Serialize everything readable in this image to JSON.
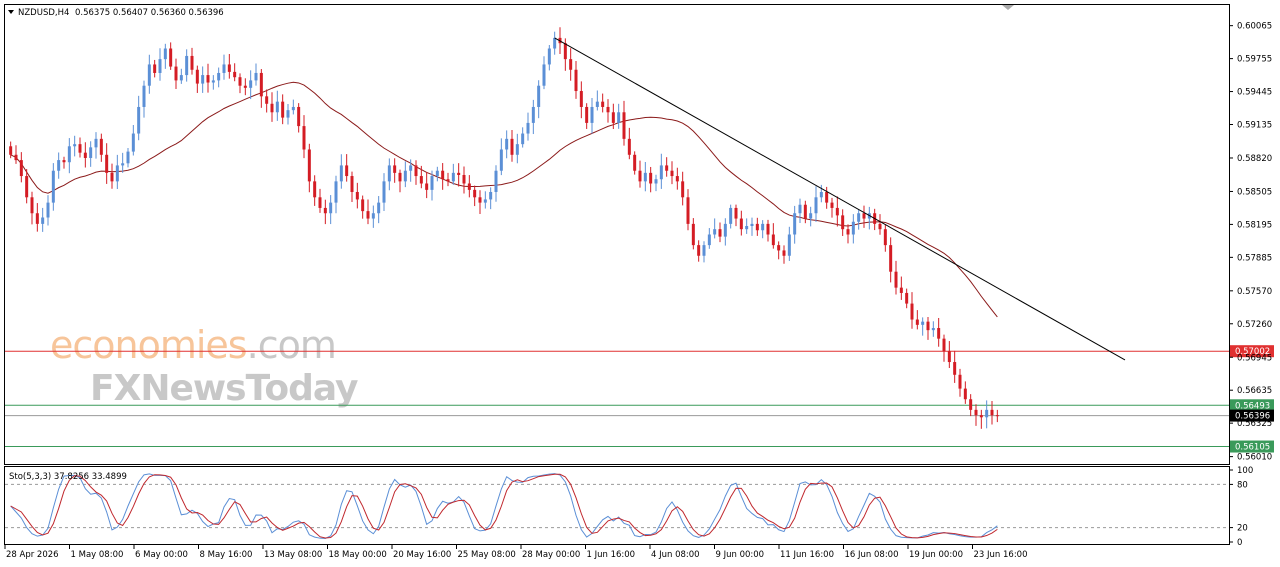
{
  "header": {
    "symbol": "NZDUSD,H4",
    "ohlc": "0.56375 0.56407 0.56360 0.56396"
  },
  "indicator": {
    "label": "Sto(5,3,3) 37.8256 33.4899",
    "levels": [
      "100",
      "80",
      "20",
      "0"
    ]
  },
  "watermark": {
    "brand1a": "economies",
    "brand1b": ".com",
    "brand2": "FXNewsToday"
  },
  "colors": {
    "bull": "#5b8fd6",
    "bear": "#d41c24",
    "ma": "#8b1a1a",
    "trend": "#000000",
    "resistance": "#e03030",
    "support": "#3a9a5a",
    "stoch_k": "#5b8fd6",
    "stoch_d": "#c0282e"
  },
  "chart_data": {
    "type": "candlestick",
    "price_axis": [
      "0.60065",
      "0.59755",
      "0.59445",
      "0.59135",
      "0.58820",
      "0.58505",
      "0.58195",
      "0.57885",
      "0.57570",
      "0.57260",
      "0.56945",
      "0.56635",
      "0.56325",
      "0.56010"
    ],
    "time_axis": [
      "28 Apr 2026",
      "1 May 08:00",
      "6 May 00:00",
      "8 May 16:00",
      "13 May 08:00",
      "18 May 00:00",
      "20 May 16:00",
      "25 May 08:00",
      "28 May 00:00",
      "1 Jun 16:00",
      "4 Jun 08:00",
      "9 Jun 00:00",
      "11 Jun 16:00",
      "16 Jun 08:00",
      "19 Jun 00:00",
      "23 Jun 16:00"
    ],
    "ylim": [
      0.5595,
      0.6025
    ],
    "levels": [
      {
        "value": 0.57002,
        "label": "0.57002",
        "kind": "resistance"
      },
      {
        "value": 0.56493,
        "label": "0.56493",
        "kind": "support"
      },
      {
        "value": 0.56105,
        "label": "0.56105",
        "kind": "support"
      },
      {
        "value": 0.56396,
        "label": "0.56396",
        "kind": "current"
      }
    ],
    "closes": [
      0.5885,
      0.588,
      0.5865,
      0.5845,
      0.583,
      0.582,
      0.5826,
      0.584,
      0.587,
      0.588,
      0.5878,
      0.5893,
      0.5895,
      0.5887,
      0.5882,
      0.5892,
      0.59,
      0.5885,
      0.5868,
      0.586,
      0.5875,
      0.5877,
      0.5888,
      0.5905,
      0.593,
      0.595,
      0.597,
      0.5962,
      0.5975,
      0.5985,
      0.5968,
      0.5955,
      0.596,
      0.5978,
      0.5965,
      0.5952,
      0.596,
      0.5953,
      0.5955,
      0.5962,
      0.597,
      0.5963,
      0.5958,
      0.595,
      0.5948,
      0.5955,
      0.5962,
      0.594,
      0.5933,
      0.5925,
      0.5935,
      0.592,
      0.5927,
      0.593,
      0.5912,
      0.589,
      0.586,
      0.5845,
      0.5835,
      0.583,
      0.584,
      0.586,
      0.5875,
      0.5865,
      0.585,
      0.5843,
      0.5832,
      0.5825,
      0.583,
      0.584,
      0.586,
      0.5875,
      0.5868,
      0.586,
      0.587,
      0.5875,
      0.5865,
      0.5858,
      0.5852,
      0.5865,
      0.587,
      0.5862,
      0.586,
      0.5868,
      0.5866,
      0.5858,
      0.5852,
      0.5845,
      0.584,
      0.5843,
      0.585,
      0.587,
      0.589,
      0.59,
      0.5885,
      0.5895,
      0.5905,
      0.5915,
      0.593,
      0.595,
      0.597,
      0.5985,
      0.5995,
      0.599,
      0.5975,
      0.5965,
      0.5945,
      0.593,
      0.5915,
      0.593,
      0.5935,
      0.593,
      0.5925,
      0.5915,
      0.5925,
      0.59,
      0.5885,
      0.587,
      0.586,
      0.5868,
      0.5858,
      0.5862,
      0.5875,
      0.587,
      0.5865,
      0.586,
      0.5845,
      0.582,
      0.58,
      0.579,
      0.58,
      0.581,
      0.5815,
      0.5808,
      0.582,
      0.5835,
      0.5825,
      0.5815,
      0.5818,
      0.582,
      0.5814,
      0.582,
      0.581,
      0.58,
      0.5795,
      0.579,
      0.581,
      0.583,
      0.5838,
      0.5825,
      0.583,
      0.5845,
      0.585,
      0.584,
      0.5835,
      0.5828,
      0.5815,
      0.581,
      0.5822,
      0.583,
      0.5825,
      0.583,
      0.582,
      0.5815,
      0.58,
      0.5775,
      0.576,
      0.5755,
      0.5745,
      0.573,
      0.5725,
      0.5728,
      0.572,
      0.5722,
      0.5712,
      0.57,
      0.569,
      0.5678,
      0.5665,
      0.5655,
      0.5645,
      0.564,
      0.5638,
      0.5645,
      0.564,
      0.56396
    ],
    "series": [
      {
        "name": "trendline",
        "points": [
          [
            0,
            0.5995
          ],
          [
            1,
            0.5692
          ]
        ]
      }
    ]
  }
}
